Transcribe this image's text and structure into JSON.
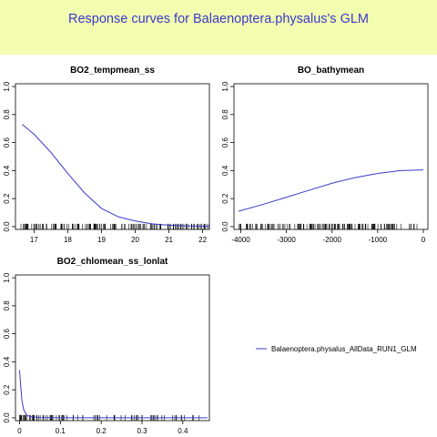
{
  "title": "Response curves for Balaenoptera.physalus's GLM",
  "colors": {
    "banner": "#f2fdb0",
    "title": "#3a3acc",
    "curve": "#3a3acc"
  },
  "legend": {
    "label": "Balaenoptera.physalus_AllData_RUN1_GLM",
    "placement": "right-middle"
  },
  "chart_data": [
    {
      "type": "line",
      "title": "BO2_tempmean_ss",
      "xlim": [
        16.45,
        22.2
      ],
      "ylim": [
        -0.02,
        1.02
      ],
      "xticks": [
        17,
        18,
        19,
        20,
        21,
        22
      ],
      "yticks": [
        0.0,
        0.2,
        0.4,
        0.6,
        0.8,
        1.0
      ],
      "series": [
        {
          "x": [
            16.65,
            17.0,
            17.5,
            18.0,
            18.5,
            19.0,
            19.5,
            20.0,
            20.5,
            21.0,
            21.5,
            22.2
          ],
          "y": [
            0.73,
            0.66,
            0.53,
            0.38,
            0.24,
            0.13,
            0.07,
            0.04,
            0.02,
            0.01,
            0.005,
            0.002
          ]
        }
      ],
      "rug_range": [
        16.6,
        22.2
      ]
    },
    {
      "type": "line",
      "title": "BO_bathymean",
      "xlim": [
        -4150,
        100
      ],
      "ylim": [
        -0.02,
        1.02
      ],
      "xticks": [
        -4000,
        -3000,
        -2000,
        -1000,
        0
      ],
      "yticks": [
        0.0,
        0.2,
        0.4,
        0.6,
        0.8,
        1.0
      ],
      "series": [
        {
          "x": [
            -4050,
            -3500,
            -3000,
            -2500,
            -2000,
            -1500,
            -1000,
            -500,
            0
          ],
          "y": [
            0.11,
            0.16,
            0.21,
            0.26,
            0.31,
            0.35,
            0.38,
            0.4,
            0.405
          ]
        }
      ],
      "rug_range": [
        -4050,
        0
      ]
    },
    {
      "type": "line",
      "title": "BO2_chlomean_ss_lonlat",
      "xlim": [
        -0.01,
        0.465
      ],
      "ylim": [
        -0.02,
        1.02
      ],
      "xticks": [
        0.0,
        0.1,
        0.2,
        0.3,
        0.4
      ],
      "yticks": [
        0.0,
        0.2,
        0.4,
        0.6,
        0.8,
        1.0
      ],
      "series": [
        {
          "x": [
            0.0,
            0.003,
            0.006,
            0.01,
            0.015,
            0.02,
            0.03,
            0.05,
            0.1,
            0.2,
            0.3,
            0.4,
            0.46
          ],
          "y": [
            0.34,
            0.22,
            0.12,
            0.06,
            0.03,
            0.015,
            0.006,
            0.002,
            0.0005,
            0.0,
            0.0,
            0.0,
            0.0
          ]
        }
      ],
      "rug_range": [
        0.0,
        0.46
      ]
    }
  ]
}
